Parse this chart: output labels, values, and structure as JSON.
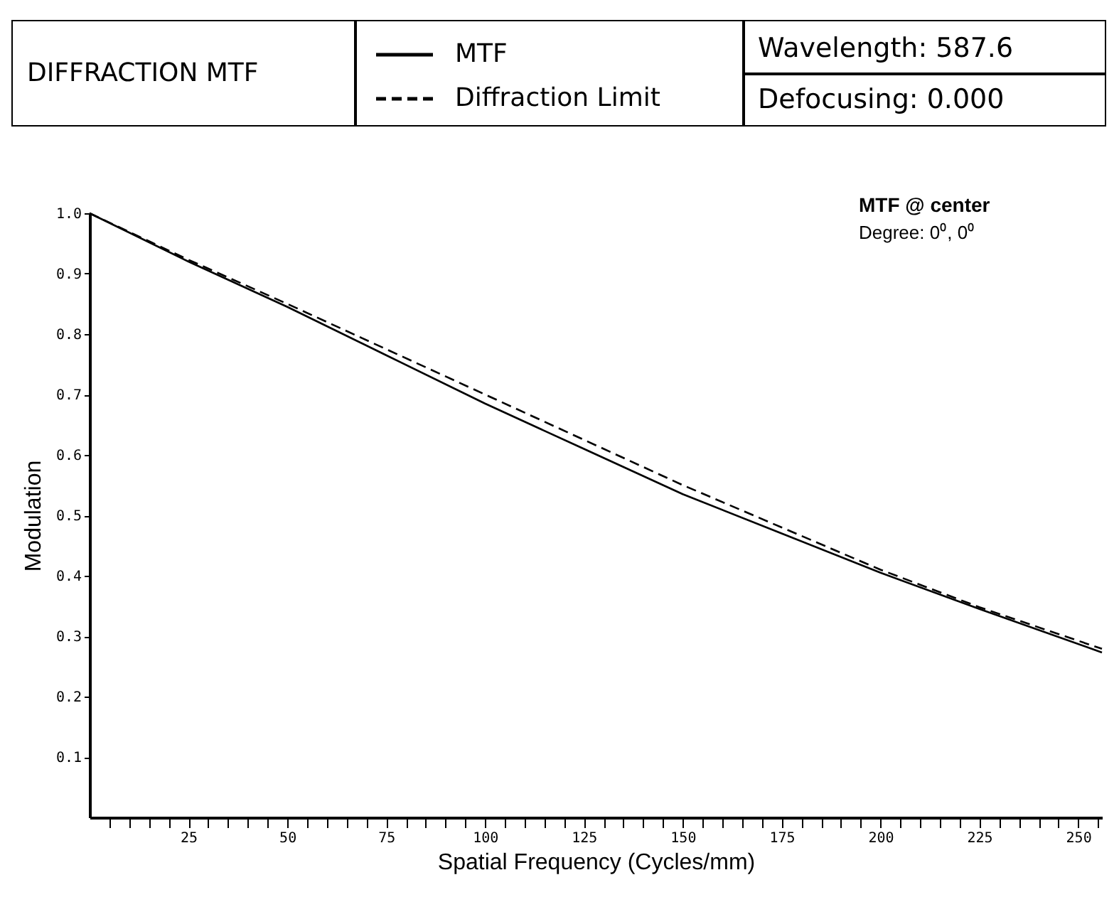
{
  "chart_data": {
    "type": "line",
    "title": "DIFFRACTION MTF",
    "xlabel": "Spatial Frequency (Cycles/mm)",
    "ylabel": "Modulation",
    "annotations": [
      "Wavelength:  587.6",
      "Defocusing:  0.000",
      "MTF @ center",
      "Degree: 0⁰, 0⁰"
    ],
    "x": [
      0,
      25,
      50,
      75,
      100,
      125,
      150,
      175,
      200,
      225,
      256
    ],
    "series": [
      {
        "name": "MTF",
        "color": "#000000",
        "line_style": "solid",
        "values": [
          1.0,
          0.92,
          0.845,
          0.765,
          0.685,
          0.61,
          0.535,
          0.47,
          0.405,
          0.345,
          0.273
        ]
      },
      {
        "name": "Diffraction Limit",
        "color": "#000000",
        "line_style": "dashed",
        "values": [
          1.0,
          0.923,
          0.85,
          0.775,
          0.7,
          0.625,
          0.55,
          0.48,
          0.41,
          0.348,
          0.279
        ]
      }
    ],
    "xlim": [
      0,
      256
    ],
    "xticks": [
      {
        "value": 5,
        "label": null
      },
      {
        "value": 10,
        "label": null
      },
      {
        "value": 15,
        "label": null
      },
      {
        "value": 20,
        "label": null
      },
      25,
      {
        "value": 30,
        "label": null
      },
      {
        "value": 35,
        "label": null
      },
      {
        "value": 40,
        "label": null
      },
      {
        "value": 45,
        "label": null
      },
      50,
      {
        "value": 55,
        "label": null
      },
      {
        "value": 60,
        "label": null
      },
      {
        "value": 65,
        "label": null
      },
      {
        "value": 70,
        "label": null
      },
      75,
      {
        "value": 80,
        "label": null
      },
      {
        "value": 85,
        "label": null
      },
      {
        "value": 90,
        "label": null
      },
      {
        "value": 95,
        "label": null
      },
      100,
      {
        "value": 105,
        "label": null
      },
      {
        "value": 110,
        "label": null
      },
      {
        "value": 115,
        "label": null
      },
      {
        "value": 120,
        "label": null
      },
      125,
      {
        "value": 130,
        "label": null
      },
      {
        "value": 135,
        "label": null
      },
      {
        "value": 140,
        "label": null
      },
      {
        "value": 145,
        "label": null
      },
      150,
      {
        "value": 155,
        "label": null
      },
      {
        "value": 160,
        "label": null
      },
      {
        "value": 165,
        "label": null
      },
      {
        "value": 170,
        "label": null
      },
      175,
      {
        "value": 180,
        "label": null
      },
      {
        "value": 185,
        "label": null
      },
      {
        "value": 190,
        "label": null
      },
      {
        "value": 195,
        "label": null
      },
      200,
      {
        "value": 205,
        "label": null
      },
      {
        "value": 210,
        "label": null
      },
      {
        "value": 215,
        "label": null
      },
      {
        "value": 220,
        "label": null
      },
      225,
      {
        "value": 230,
        "label": null
      },
      {
        "value": 235,
        "label": null
      },
      {
        "value": 240,
        "label": null
      },
      {
        "value": 245,
        "label": null
      },
      250,
      {
        "value": 255,
        "label": null
      }
    ],
    "ylim": [
      0,
      1.0
    ],
    "yticks": [
      0.1,
      0.2,
      0.3,
      0.4,
      0.5,
      0.6,
      0.7,
      0.8,
      0.9,
      {
        "value": 1.0,
        "label": "1.0"
      }
    ],
    "grid": false,
    "legend": "top",
    "marker": "none"
  }
}
